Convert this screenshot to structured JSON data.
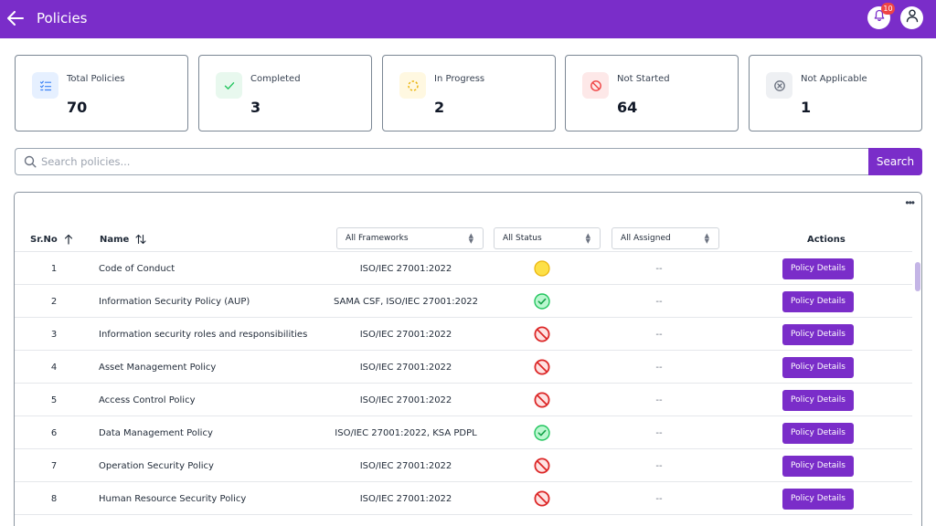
{
  "header": {
    "title": "Policies",
    "notification_count": "10"
  },
  "stats": [
    {
      "label": "Total Policies",
      "value": "70",
      "icon": "checklist-icon",
      "bg": "#e6f0ff",
      "color": "#3b82f6"
    },
    {
      "label": "Completed",
      "value": "3",
      "icon": "check-icon",
      "bg": "#e8f8ee",
      "color": "#22c55e"
    },
    {
      "label": "In Progress",
      "value": "2",
      "icon": "progress-icon",
      "bg": "#fff8e1",
      "color": "#eab308"
    },
    {
      "label": "Not Started",
      "value": "64",
      "icon": "blocked-icon",
      "bg": "#fde8e8",
      "color": "#ef4444"
    },
    {
      "label": "Not Applicable",
      "value": "1",
      "icon": "x-circle-icon",
      "bg": "#eef0f3",
      "color": "#6b7280"
    }
  ],
  "search": {
    "placeholder": "Search policies...",
    "button_label": "Search"
  },
  "table": {
    "headers": {
      "sr_no": "Sr.No",
      "name": "Name",
      "actions": "Actions"
    },
    "filters": {
      "frameworks": "All Frameworks",
      "status": "All Status",
      "assigned": "All Assigned"
    },
    "action_label": "Policy Details",
    "rows": [
      {
        "sr": "1",
        "name": "Code of Conduct",
        "framework": "ISO/IEC 27001:2022",
        "status": "in-progress",
        "assigned": "--"
      },
      {
        "sr": "2",
        "name": "Information Security Policy (AUP)",
        "framework": "SAMA CSF, ISO/IEC 27001:2022",
        "status": "completed",
        "assigned": "--"
      },
      {
        "sr": "3",
        "name": "Information security roles and responsibilities",
        "framework": "ISO/IEC 27001:2022",
        "status": "not-started",
        "assigned": "--"
      },
      {
        "sr": "4",
        "name": "Asset Management Policy",
        "framework": "ISO/IEC 27001:2022",
        "status": "not-started",
        "assigned": "--"
      },
      {
        "sr": "5",
        "name": "Access Control Policy",
        "framework": "ISO/IEC 27001:2022",
        "status": "not-started",
        "assigned": "--"
      },
      {
        "sr": "6",
        "name": "Data Management Policy",
        "framework": "ISO/IEC 27001:2022, KSA PDPL",
        "status": "completed",
        "assigned": "--"
      },
      {
        "sr": "7",
        "name": "Operation Security Policy",
        "framework": "ISO/IEC 27001:2022",
        "status": "not-started",
        "assigned": "--"
      },
      {
        "sr": "8",
        "name": "Human Resource Security Policy",
        "framework": "ISO/IEC 27001:2022",
        "status": "not-started",
        "assigned": "--"
      }
    ]
  },
  "colors": {
    "accent": "#7a2dc9",
    "completed": "#22c55e",
    "in_progress": "#facc15",
    "not_started": "#dc2626"
  }
}
